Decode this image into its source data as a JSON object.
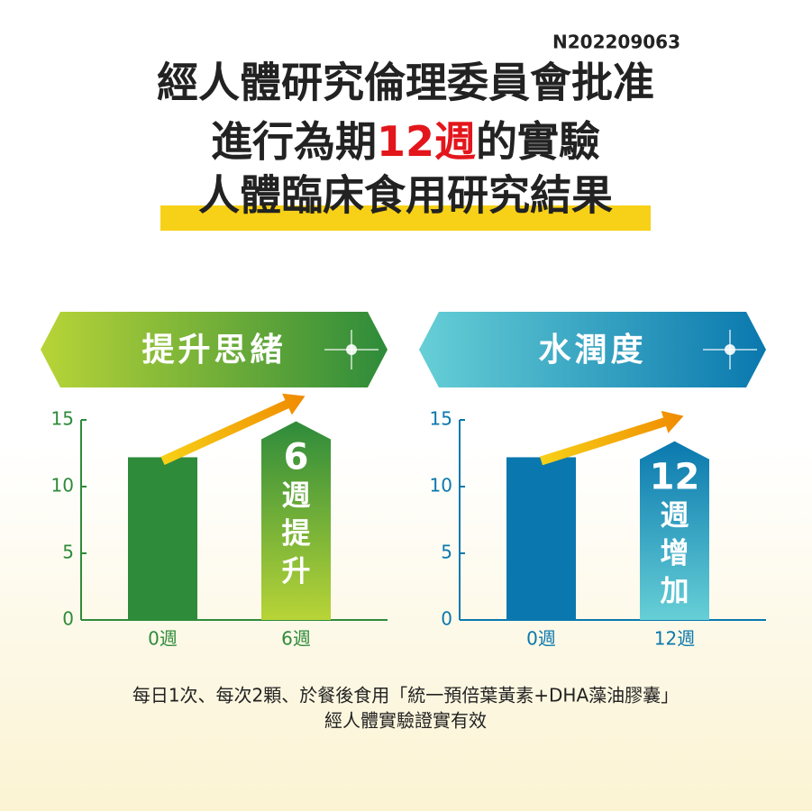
{
  "header": {
    "code": "N202209063",
    "line1": "經人體研究倫理委員會批准",
    "line2": [
      "進行為期",
      "12",
      "週",
      "的實驗"
    ],
    "line3": "人體臨床食用研究結果"
  },
  "chart_data": [
    {
      "type": "bar",
      "title": "提升思緒",
      "categories": [
        "0週",
        "6週"
      ],
      "values": [
        12.2,
        14.9
      ],
      "color": "#2e8b3a",
      "accent_color": "#b8d437",
      "ylim": [
        0,
        15
      ],
      "yticks": [
        0,
        5,
        10,
        15
      ],
      "bar_label": [
        "6",
        "週",
        "提",
        "升"
      ]
    },
    {
      "type": "bar",
      "title": "水潤度",
      "categories": [
        "0週",
        "12週"
      ],
      "values": [
        12.2,
        13.4
      ],
      "color": "#0a78ae",
      "accent_color": "#66cfd6",
      "ylim": [
        0,
        15
      ],
      "yticks": [
        0,
        5,
        10,
        15
      ],
      "bar_label": [
        "12",
        "週",
        "增",
        "加"
      ]
    }
  ],
  "footer": {
    "line1": "每日1次、每次2顆、於餐後食用「統一預倍葉黃素+DHA藻油膠囊」",
    "line2": "經人體實驗證實有效"
  }
}
